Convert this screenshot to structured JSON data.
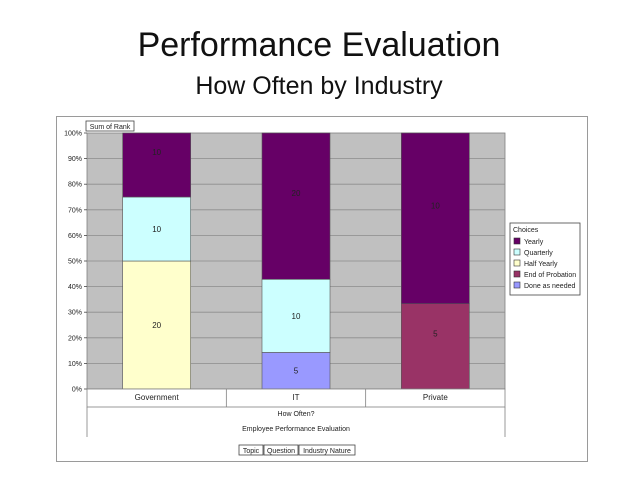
{
  "slide": {
    "title": "Performance Evaluation",
    "subtitle": "How Often by Industry"
  },
  "chart_data": {
    "type": "bar",
    "stacked": true,
    "normalized": true,
    "categories": [
      "Government",
      "IT",
      "Private"
    ],
    "series": [
      {
        "name": "Done as needed",
        "color": "#9999ff",
        "values": [
          0,
          5,
          0
        ]
      },
      {
        "name": "End of Probation",
        "color": "#993366",
        "values": [
          0,
          0,
          5
        ]
      },
      {
        "name": "Half Yearly",
        "color": "#ffffcc",
        "values": [
          20,
          0,
          0
        ]
      },
      {
        "name": "Quarterly",
        "color": "#ccffff",
        "values": [
          10,
          10,
          0
        ]
      },
      {
        "name": "Yearly",
        "color": "#660066",
        "values": [
          10,
          20,
          10
        ]
      }
    ],
    "legend_order": [
      "Yearly",
      "Quarterly",
      "Half Yearly",
      "End of Probation",
      "Done as needed"
    ],
    "ylim": [
      0,
      1
    ],
    "yticks": [
      "0%",
      "10%",
      "20%",
      "30%",
      "40%",
      "50%",
      "60%",
      "70%",
      "80%",
      "90%",
      "100%"
    ],
    "field_label": "Sum of Rank",
    "legend_title": "Choices",
    "axis_fields": [
      "How Often?",
      "Employee Performance Evaluation"
    ],
    "page_fields": [
      "Topic",
      "Question",
      "Industry Nature"
    ],
    "plot_background": "#c0c0c0",
    "grid": true,
    "legend_position": "right"
  }
}
